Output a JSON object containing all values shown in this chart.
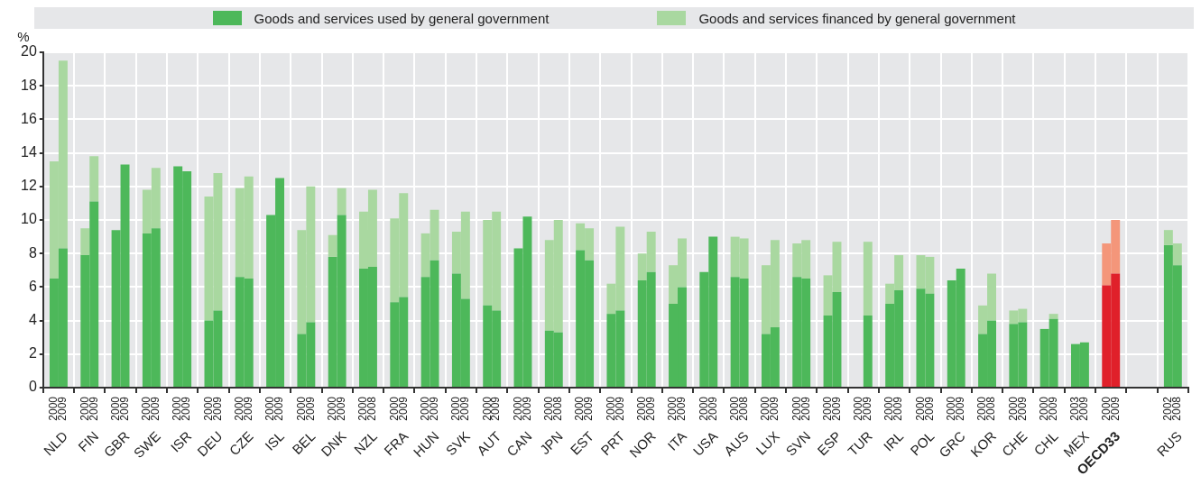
{
  "chart_data": {
    "type": "bar",
    "stacked": true,
    "ylabel": "%",
    "legend": "top",
    "grid": true,
    "categories": [
      "2000",
      "2009",
      "2000",
      "2009",
      "2000",
      "2009",
      "2000",
      "2009",
      "2000",
      "2009",
      "2000",
      "2009",
      "2000",
      "2009",
      "2000",
      "2009",
      "2000",
      "2009",
      "2000",
      "2009",
      "2000",
      "2008",
      "2000",
      "2009",
      "2000",
      "2009",
      "2000",
      "2009",
      "2000",
      "2009",
      "2000",
      "2009",
      "2000",
      "2008",
      "2000",
      "2009",
      "2000",
      "2009",
      "2000",
      "2009",
      "2000",
      "2009",
      "2000",
      "2009",
      "2000",
      "2008",
      "2000",
      "2009",
      "2000",
      "2009",
      "2000",
      "2009",
      "2000",
      "2009",
      "2000",
      "2009",
      "2000",
      "2009",
      "2000",
      "2009",
      "2000",
      "2008",
      "2000",
      "2009",
      "2000",
      "2009",
      "2003",
      "2009",
      "2000",
      "2009",
      null,
      null,
      "2002",
      "2008"
    ],
    "annotations": [
      "NLD",
      "FIN",
      "GBR",
      "SWE",
      "ISR",
      "DEU",
      "CZE",
      "ISL",
      "BEL",
      "DNK",
      "NZL",
      "FRA",
      "HUN",
      "SVK",
      "AUT",
      "CAN",
      "JPN",
      "EST",
      "PRT",
      "NOR",
      "ITA",
      "USA",
      "AUS",
      "LUX",
      "SVN",
      "ESP",
      "TUR",
      "IRL",
      "POL",
      "GRC",
      "KOR",
      "CHE",
      "CHL",
      "MEX",
      "OECD33",
      "RUS"
    ],
    "ylim": [
      0,
      20
    ],
    "yticks": [
      0,
      2,
      4,
      6,
      8,
      10,
      12,
      14,
      16,
      18,
      20
    ],
    "series": [
      {
        "name": "Goods and services used by general government",
        "color": "#4db85a",
        "values": [
          6.5,
          8.3,
          7.9,
          11.1,
          9.4,
          13.3,
          9.2,
          9.5,
          13.2,
          12.9,
          4.0,
          4.6,
          6.6,
          6.5,
          10.3,
          12.5,
          3.2,
          3.9,
          7.8,
          10.3,
          7.1,
          7.2,
          5.1,
          5.4,
          6.6,
          7.6,
          6.8,
          5.3,
          4.9,
          4.6,
          8.3,
          10.2,
          3.4,
          3.3,
          8.2,
          7.6,
          4.4,
          4.6,
          6.4,
          6.9,
          5.0,
          6.0,
          6.9,
          9.0,
          6.6,
          6.5,
          3.2,
          3.6,
          6.6,
          6.5,
          4.3,
          5.7,
          null,
          4.3,
          5.0,
          5.8,
          5.9,
          5.6,
          6.4,
          7.1,
          3.2,
          4.0,
          3.8,
          3.9,
          3.5,
          4.1,
          2.6,
          2.7,
          6.1,
          6.8,
          null,
          null,
          8.5,
          7.3
        ],
        "colors": [
          "#4db85a",
          "#4db85a",
          "#4db85a",
          "#4db85a",
          "#4db85a",
          "#4db85a",
          "#4db85a",
          "#4db85a",
          "#4db85a",
          "#4db85a",
          "#4db85a",
          "#4db85a",
          "#4db85a",
          "#4db85a",
          "#4db85a",
          "#4db85a",
          "#4db85a",
          "#4db85a",
          "#4db85a",
          "#4db85a",
          "#4db85a",
          "#4db85a",
          "#4db85a",
          "#4db85a",
          "#4db85a",
          "#4db85a",
          "#4db85a",
          "#4db85a",
          "#4db85a",
          "#4db85a",
          "#4db85a",
          "#4db85a",
          "#4db85a",
          "#4db85a",
          "#4db85a",
          "#4db85a",
          "#4db85a",
          "#4db85a",
          "#4db85a",
          "#4db85a",
          "#4db85a",
          "#4db85a",
          "#4db85a",
          "#4db85a",
          "#4db85a",
          "#4db85a",
          "#4db85a",
          "#4db85a",
          "#4db85a",
          "#4db85a",
          "#4db85a",
          "#4db85a",
          "#4db85a",
          "#4db85a",
          "#4db85a",
          "#4db85a",
          "#4db85a",
          "#4db85a",
          "#4db85a",
          "#4db85a",
          "#4db85a",
          "#4db85a",
          "#4db85a",
          "#4db85a",
          "#4db85a",
          "#4db85a",
          "#4db85a",
          "#4db85a",
          "#e0202a",
          "#e0202a",
          "#4db85a",
          "#4db85a",
          "#4db85a",
          "#4db85a"
        ]
      },
      {
        "name": "Goods and services financed by general government",
        "color": "#a9d8a0",
        "values": [
          7.0,
          11.2,
          1.6,
          2.7,
          null,
          null,
          2.6,
          3.6,
          null,
          null,
          7.4,
          8.2,
          5.3,
          6.1,
          null,
          null,
          6.2,
          8.1,
          1.3,
          1.6,
          3.4,
          4.6,
          5.0,
          6.2,
          2.6,
          3.0,
          2.5,
          5.2,
          5.1,
          5.9,
          null,
          null,
          5.4,
          6.7,
          1.6,
          1.9,
          1.8,
          5.0,
          1.6,
          2.4,
          2.3,
          2.9,
          null,
          null,
          2.4,
          2.4,
          4.1,
          5.2,
          2.0,
          2.3,
          2.4,
          3.0,
          null,
          4.4,
          1.2,
          2.1,
          2.0,
          2.2,
          null,
          null,
          1.7,
          2.8,
          0.8,
          0.8,
          null,
          0.3,
          null,
          null,
          2.5,
          3.2,
          null,
          null,
          0.9,
          1.3
        ],
        "colors": [
          "#a9d8a0",
          "#a9d8a0",
          "#a9d8a0",
          "#a9d8a0",
          "#a9d8a0",
          "#a9d8a0",
          "#a9d8a0",
          "#a9d8a0",
          "#a9d8a0",
          "#a9d8a0",
          "#a9d8a0",
          "#a9d8a0",
          "#a9d8a0",
          "#a9d8a0",
          "#a9d8a0",
          "#a9d8a0",
          "#a9d8a0",
          "#a9d8a0",
          "#a9d8a0",
          "#a9d8a0",
          "#a9d8a0",
          "#a9d8a0",
          "#a9d8a0",
          "#a9d8a0",
          "#a9d8a0",
          "#a9d8a0",
          "#a9d8a0",
          "#a9d8a0",
          "#a9d8a0",
          "#a9d8a0",
          "#a9d8a0",
          "#a9d8a0",
          "#a9d8a0",
          "#a9d8a0",
          "#a9d8a0",
          "#a9d8a0",
          "#a9d8a0",
          "#a9d8a0",
          "#a9d8a0",
          "#a9d8a0",
          "#a9d8a0",
          "#a9d8a0",
          "#a9d8a0",
          "#a9d8a0",
          "#a9d8a0",
          "#a9d8a0",
          "#a9d8a0",
          "#a9d8a0",
          "#a9d8a0",
          "#a9d8a0",
          "#a9d8a0",
          "#a9d8a0",
          "#a9d8a0",
          "#a9d8a0",
          "#a9d8a0",
          "#a9d8a0",
          "#a9d8a0",
          "#a9d8a0",
          "#a9d8a0",
          "#a9d8a0",
          "#a9d8a0",
          "#a9d8a0",
          "#a9d8a0",
          "#a9d8a0",
          "#a9d8a0",
          "#a9d8a0",
          "#a9d8a0",
          "#a9d8a0",
          "#f4967a",
          "#f4967a",
          "#a9d8a0",
          "#a9d8a0",
          "#a9d8a0",
          "#a9d8a0"
        ]
      }
    ]
  }
}
